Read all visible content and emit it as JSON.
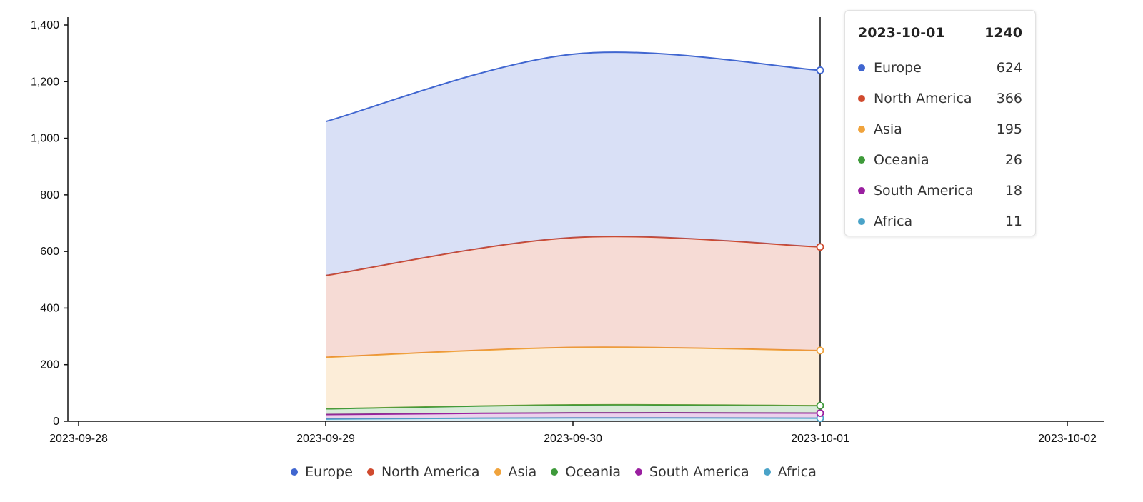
{
  "chart_data": {
    "type": "area",
    "stacked": true,
    "x": [
      "2023-09-29",
      "2023-09-30",
      "2023-10-01"
    ],
    "x_ticks": [
      "2023-09-28",
      "2023-09-29",
      "2023-09-30",
      "2023-10-01",
      "2023-10-02"
    ],
    "xlim": [
      "2023-09-28",
      "2023-10-02"
    ],
    "y_ticks": [
      "0",
      "200",
      "400",
      "600",
      "800",
      "1,000",
      "1,200",
      "1,400"
    ],
    "ylim": [
      0,
      1400
    ],
    "series": [
      {
        "name": "Africa",
        "color": "#4aa3c8",
        "values": [
          8,
          12,
          11
        ]
      },
      {
        "name": "South America",
        "color": "#9a1fa0",
        "values": [
          16,
          18,
          18
        ]
      },
      {
        "name": "Oceania",
        "color": "#3e9a3a",
        "values": [
          20,
          28,
          26
        ]
      },
      {
        "name": "Asia",
        "color": "#f0a33c",
        "values": [
          182,
          203,
          195
        ]
      },
      {
        "name": "North America",
        "color": "#d04a2e",
        "values": [
          289,
          388,
          366
        ]
      },
      {
        "name": "Europe",
        "color": "#4066d0",
        "values": [
          544,
          648,
          624
        ]
      }
    ],
    "legend_order": [
      "Europe",
      "North America",
      "Asia",
      "Oceania",
      "South America",
      "Africa"
    ],
    "legend_position": "bottom-center",
    "hover_x": "2023-10-01",
    "grid": false
  },
  "tooltip": {
    "date": "2023-10-01",
    "total": "1240",
    "rows": [
      {
        "name": "Europe",
        "value": "624",
        "color": "#4066d0"
      },
      {
        "name": "North America",
        "value": "366",
        "color": "#d04a2e"
      },
      {
        "name": "Asia",
        "value": "195",
        "color": "#f0a33c"
      },
      {
        "name": "Oceania",
        "value": "26",
        "color": "#3e9a3a"
      },
      {
        "name": "South America",
        "value": "18",
        "color": "#9a1fa0"
      },
      {
        "name": "Africa",
        "value": "11",
        "color": "#4aa3c8"
      }
    ]
  }
}
